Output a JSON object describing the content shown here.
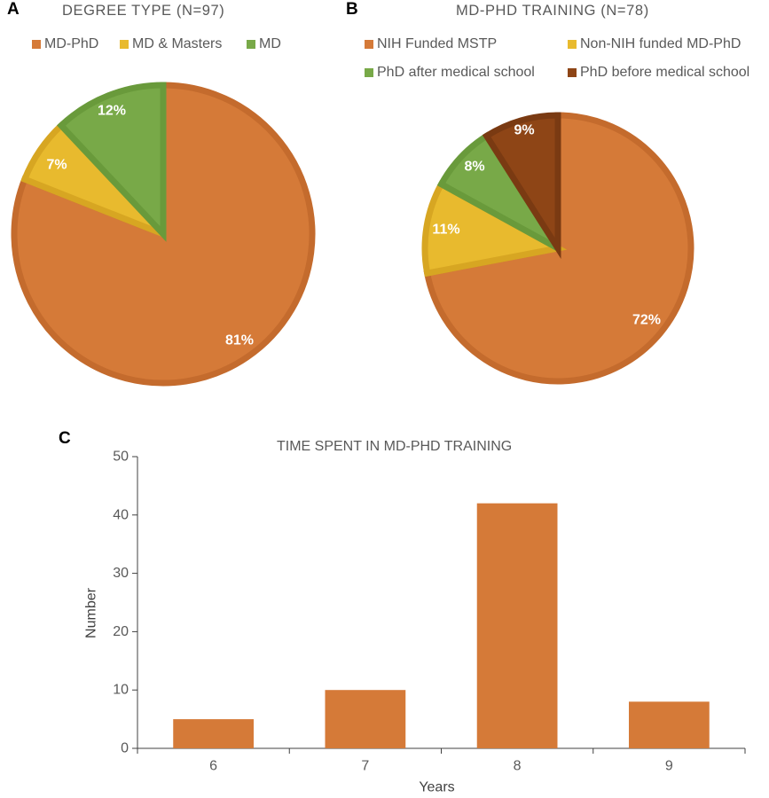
{
  "panels": {
    "a": {
      "letter": "A"
    },
    "b": {
      "letter": "B"
    },
    "c": {
      "letter": "C"
    }
  },
  "colors": {
    "orange": "#D57A38",
    "orange_edge": "#C46B2D",
    "yellow": "#E8BA2E",
    "yellow_edge": "#D7A622",
    "green": "#78A948",
    "green_edge": "#699A3B",
    "brown": "#8E4516",
    "brown_edge": "#7A3A12",
    "text": "#595959",
    "axis": "#404040"
  },
  "chart_data": [
    {
      "type": "pie",
      "title": "DEGREE TYPE (N=97)",
      "legend_position": "top",
      "slices": [
        {
          "label": "MD-PhD",
          "value": 81,
          "display": "81%",
          "color": "#D57A38"
        },
        {
          "label": "MD & Masters",
          "value": 7,
          "display": "7%",
          "color": "#E8BA2E"
        },
        {
          "label": "MD",
          "value": 12,
          "display": "12%",
          "color": "#78A948"
        }
      ]
    },
    {
      "type": "pie",
      "title": "MD-PHD TRAINING (N=78)",
      "legend_position": "top",
      "slices": [
        {
          "label": "NIH Funded MSTP",
          "value": 72,
          "display": "72%",
          "color": "#D57A38"
        },
        {
          "label": "Non-NIH funded MD-PhD",
          "value": 11,
          "display": "11%",
          "color": "#E8BA2E"
        },
        {
          "label": "PhD after medical school",
          "value": 8,
          "display": "8%",
          "color": "#78A948"
        },
        {
          "label": "PhD before medical school",
          "value": 9,
          "display": "9%",
          "color": "#8E4516"
        }
      ]
    },
    {
      "type": "bar",
      "title": "TIME SPENT IN MD-PHD TRAINING",
      "categories": [
        "6",
        "7",
        "8",
        "9"
      ],
      "values": [
        5,
        10,
        42,
        8
      ],
      "xlabel": "Years",
      "ylabel": "Number",
      "ylim": [
        0,
        50
      ],
      "yticks": [
        "0",
        "10",
        "20",
        "30",
        "40",
        "50"
      ],
      "grid": false,
      "color": "#D57A38"
    }
  ]
}
